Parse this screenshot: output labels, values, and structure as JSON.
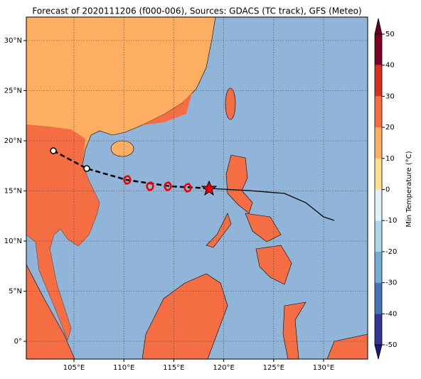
{
  "title": "Forecast of 2020111206 (f000-006), Sources: GDACS (TC track), GFS (Meteo)",
  "map": {
    "lon_labels": [
      "105°E",
      "110°E",
      "115°E",
      "120°E",
      "125°E",
      "130°E"
    ],
    "lat_labels": [
      "30°N",
      "25°N",
      "20°N",
      "15°N",
      "10°N",
      "5°N",
      "0°"
    ]
  },
  "colorbar": {
    "label": "Min Temperature (°C)",
    "ticks": [
      50,
      40,
      30,
      20,
      10,
      0,
      -10,
      -20,
      -30,
      -40,
      -50
    ]
  }
}
